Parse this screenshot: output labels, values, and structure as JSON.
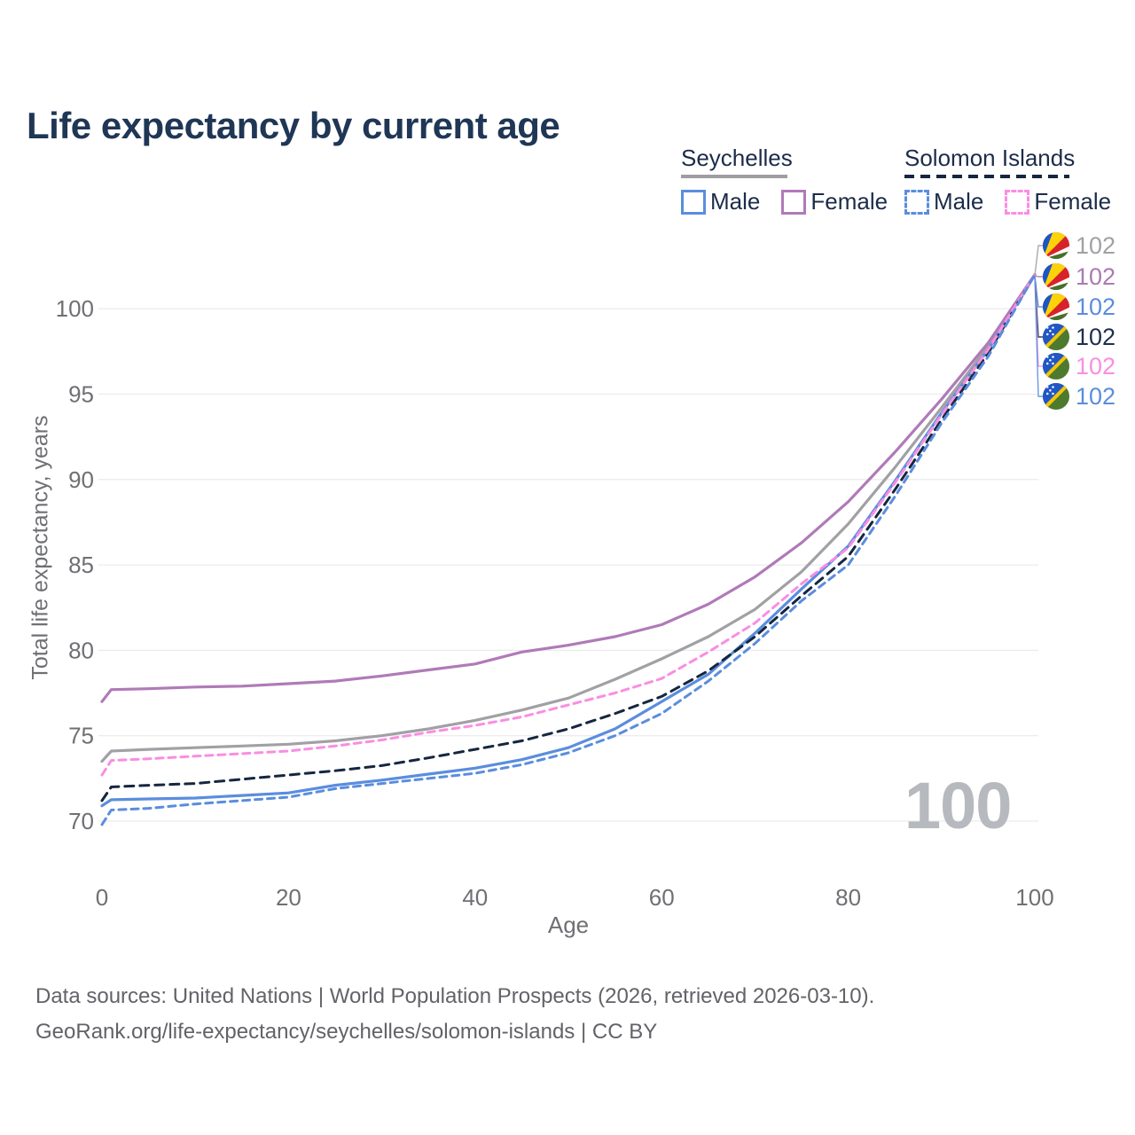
{
  "title": "Life expectancy by current age",
  "legend": {
    "groups": [
      {
        "name": "Seychelles",
        "line_style": "solid",
        "underline_color": "#9e9ea2",
        "items": [
          {
            "label": "Male",
            "color": "#5a8dde",
            "dash": false
          },
          {
            "label": "Female",
            "color": "#b07ab8",
            "dash": false
          }
        ]
      },
      {
        "name": "Solomon Islands",
        "line_style": "dashed",
        "underline_color": "#16263f",
        "items": [
          {
            "label": "Male",
            "color": "#5a8dde",
            "dash": true
          },
          {
            "label": "Female",
            "color": "#fa8de2",
            "dash": true
          }
        ]
      }
    ]
  },
  "axes": {
    "x": {
      "label": "Age",
      "ticks": [
        0,
        20,
        40,
        60,
        80,
        100
      ],
      "range": [
        0,
        100
      ]
    },
    "y": {
      "label": "Total life expectancy, years",
      "ticks": [
        70,
        75,
        80,
        85,
        90,
        95,
        100
      ],
      "range": [
        68.5,
        103
      ]
    }
  },
  "watermark": "100",
  "end_labels": [
    {
      "value": "102",
      "flag": "seychelles",
      "series": "Seychelles (both sexes)",
      "color": "#a1a1a5"
    },
    {
      "value": "102",
      "flag": "seychelles",
      "series": "Seychelles Female",
      "color": "#ab7ab3"
    },
    {
      "value": "102",
      "flag": "seychelles",
      "series": "Seychelles Male",
      "color": "#5a8dde"
    },
    {
      "value": "102",
      "flag": "solomon-islands",
      "series": "Solomon Islands (both sexes)",
      "color": "#1d2e4e"
    },
    {
      "value": "102",
      "flag": "solomon-islands",
      "series": "Solomon Islands Female",
      "color": "#fa8de2"
    },
    {
      "value": "102",
      "flag": "solomon-islands",
      "series": "Solomon Islands Male",
      "color": "#5a8dde"
    }
  ],
  "footer": {
    "line1": "Data sources: United Nations | World Population Prospects (2026, retrieved 2026-03-10).",
    "line2": "GeoRank.org/life-expectancy/seychelles/solomon-islands | CC BY"
  },
  "chart_data": {
    "type": "line",
    "title": "Life expectancy by current age",
    "xlabel": "Age",
    "ylabel": "Total life expectancy, years",
    "xlim": [
      0,
      100
    ],
    "ylim": [
      68.5,
      103
    ],
    "grid": "horizontal",
    "legend_position": "top-right",
    "ages": [
      0,
      1,
      5,
      10,
      15,
      20,
      25,
      30,
      35,
      40,
      45,
      50,
      55,
      60,
      65,
      70,
      75,
      80,
      85,
      90,
      95,
      100
    ],
    "series": [
      {
        "id": "sey-both",
        "name": "Seychelles (both sexes)",
        "country": "Seychelles",
        "sex": "all",
        "line": "solid",
        "color": "#a1a1a5",
        "values": [
          73.5,
          74.1,
          74.2,
          74.3,
          74.4,
          74.5,
          74.7,
          75.0,
          75.4,
          75.9,
          76.5,
          77.2,
          78.3,
          79.5,
          80.8,
          82.4,
          84.6,
          87.4,
          90.7,
          94.2,
          97.8,
          102
        ]
      },
      {
        "id": "sey-male",
        "name": "Seychelles Male",
        "country": "Seychelles",
        "sex": "male",
        "line": "solid",
        "color": "#5a8dde",
        "values": [
          70.9,
          71.25,
          71.3,
          71.35,
          71.5,
          71.65,
          72.1,
          72.4,
          72.75,
          73.1,
          73.6,
          74.3,
          75.4,
          77.0,
          78.6,
          81.0,
          83.6,
          86.1,
          89.9,
          93.9,
          97.6,
          102
        ]
      },
      {
        "id": "sey-female",
        "name": "Seychelles Female",
        "country": "Seychelles",
        "sex": "female",
        "line": "solid",
        "color": "#b07ab8",
        "values": [
          77.0,
          77.7,
          77.75,
          77.85,
          77.9,
          78.05,
          78.2,
          78.5,
          78.85,
          79.2,
          79.9,
          80.3,
          80.8,
          81.5,
          82.7,
          84.3,
          86.3,
          88.7,
          91.6,
          94.7,
          98.0,
          102
        ]
      },
      {
        "id": "sol-both",
        "name": "Solomon Islands (both sexes)",
        "country": "Solomon Islands",
        "sex": "all",
        "line": "dashed",
        "color": "#16263f",
        "values": [
          71.2,
          72.0,
          72.1,
          72.2,
          72.45,
          72.7,
          72.95,
          73.25,
          73.7,
          74.2,
          74.7,
          75.4,
          76.3,
          77.3,
          78.8,
          80.8,
          83.2,
          85.5,
          89.4,
          93.5,
          97.4,
          102
        ]
      },
      {
        "id": "sol-female",
        "name": "Solomon Islands Female",
        "country": "Solomon Islands",
        "sex": "female",
        "line": "dashed",
        "color": "#fa8de2",
        "values": [
          72.7,
          73.55,
          73.65,
          73.8,
          73.95,
          74.1,
          74.4,
          74.75,
          75.2,
          75.6,
          76.1,
          76.8,
          77.5,
          78.35,
          79.9,
          81.6,
          83.9,
          86.0,
          89.8,
          93.8,
          97.6,
          102
        ]
      },
      {
        "id": "sol-male",
        "name": "Solomon Islands Male",
        "country": "Solomon Islands",
        "sex": "male",
        "line": "dashed",
        "color": "#5a8dde",
        "values": [
          69.8,
          70.65,
          70.75,
          71.0,
          71.2,
          71.4,
          71.9,
          72.2,
          72.5,
          72.8,
          73.3,
          74.0,
          75.0,
          76.3,
          78.2,
          80.4,
          82.9,
          85.0,
          89.0,
          93.3,
          97.2,
          102
        ]
      }
    ]
  }
}
